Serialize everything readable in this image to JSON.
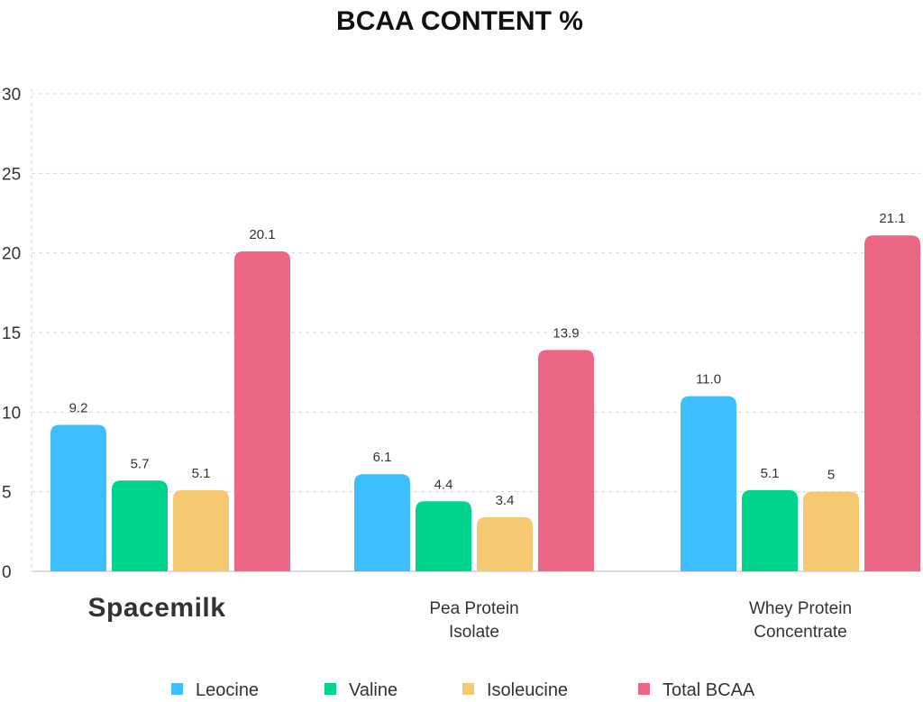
{
  "chart_data": {
    "type": "bar",
    "title": "BCAA CONTENT %",
    "xlabel": "",
    "ylabel": "",
    "ylim": [
      0,
      30
    ],
    "yticks": [
      0,
      5,
      10,
      15,
      20,
      25,
      30
    ],
    "grid": true,
    "legend_position": "bottom",
    "categories": [
      "Spacemilk",
      "Pea Protein\nIsolate",
      "Whey Protein\nConcentrate"
    ],
    "series": [
      {
        "name": "Leocine",
        "color": "#3dbeff",
        "values": [
          9.2,
          6.1,
          11.0
        ],
        "labels": [
          "9.2",
          "6.1",
          "11.0"
        ]
      },
      {
        "name": "Valine",
        "color": "#00d38b",
        "values": [
          5.7,
          4.4,
          5.1
        ],
        "labels": [
          "5.7",
          "4.4",
          "5.1"
        ]
      },
      {
        "name": "Isoleucine",
        "color": "#f5c96f",
        "values": [
          5.1,
          3.4,
          5
        ],
        "labels": [
          "5.1",
          "3.4",
          "5"
        ]
      },
      {
        "name": "Total BCAA",
        "color": "#ec6783",
        "values": [
          20.1,
          13.9,
          21.1
        ],
        "labels": [
          "20.1",
          "13.9",
          "21.1"
        ]
      }
    ]
  }
}
